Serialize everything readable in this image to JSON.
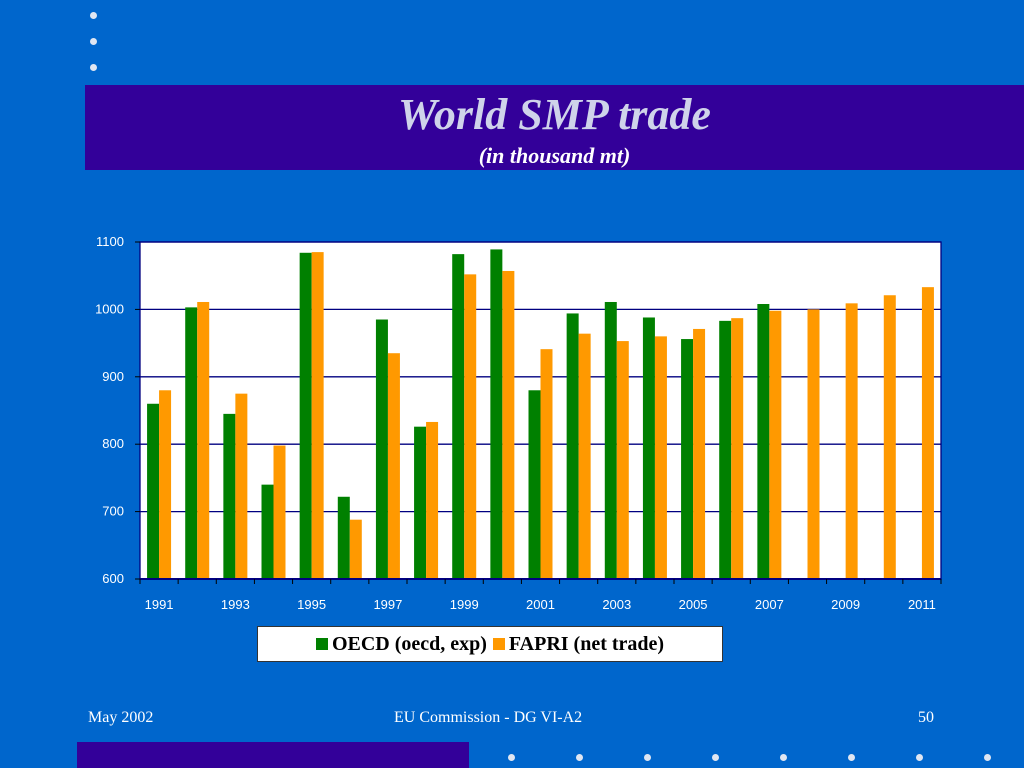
{
  "slide": {
    "title": "World SMP trade",
    "subtitle": "(in thousand mt)",
    "footer_left": "May 2002",
    "footer_center": "EU Commission - DG VI-A2",
    "footer_right": "50"
  },
  "colors": {
    "background": "#0066cc",
    "title_band": "#330099",
    "oecd": "#008000",
    "fapri": "#ff9900"
  },
  "chart_data": {
    "type": "bar",
    "categories": [
      "1991",
      "1992",
      "1993",
      "1994",
      "1995",
      "1996",
      "1997",
      "1998",
      "1999",
      "2000",
      "2001",
      "2002",
      "2003",
      "2004",
      "2005",
      "2006",
      "2007",
      "2008",
      "2009",
      "2010",
      "2011"
    ],
    "x_tick_labels": [
      "1991",
      "1993",
      "1995",
      "1997",
      "1999",
      "2001",
      "2003",
      "2005",
      "2007",
      "2009",
      "2011"
    ],
    "y_tick_labels": [
      "600",
      "700",
      "800",
      "900",
      "1000",
      "1100"
    ],
    "ylim": [
      600,
      1100
    ],
    "grid": true,
    "legend_position": "bottom",
    "series": [
      {
        "name": "OECD (oecd, exp)",
        "color": "#008000",
        "values": [
          860,
          1003,
          845,
          740,
          1084,
          722,
          985,
          826,
          1082,
          1089,
          880,
          994,
          1011,
          988,
          956,
          983,
          1008,
          null,
          null,
          null,
          null
        ]
      },
      {
        "name": "FAPRI (net trade)",
        "color": "#ff9900",
        "values": [
          880,
          1011,
          875,
          798,
          1085,
          688,
          935,
          833,
          1052,
          1057,
          941,
          964,
          953,
          960,
          971,
          987,
          998,
          1000,
          1009,
          1021,
          1033
        ]
      }
    ]
  }
}
